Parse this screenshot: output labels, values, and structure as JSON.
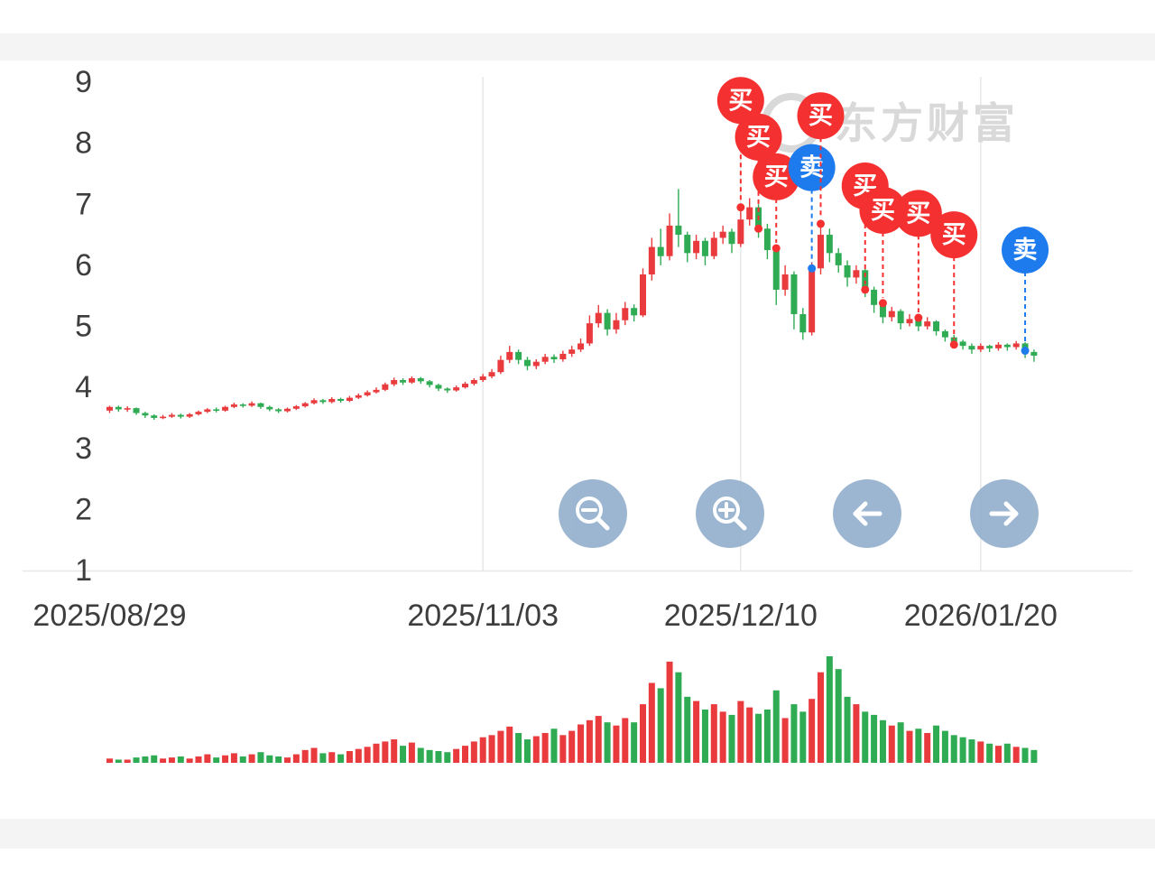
{
  "watermark": {
    "text": "东方财富"
  },
  "marker_labels": {
    "buy": "买",
    "sell": "卖"
  },
  "colors": {
    "up": "#e93b3d",
    "down": "#2fab54",
    "buy_marker": "#f53030",
    "sell_marker": "#1d7bee",
    "grid": "#e8e8e8",
    "axis_text": "#3d3d3d",
    "button_bg": "#8fadcb",
    "watermark": "#d9d9d9"
  },
  "toolbar": {
    "buttons": [
      {
        "id": "zoom-out",
        "icon": "magnifier-minus-icon"
      },
      {
        "id": "zoom-in",
        "icon": "magnifier-plus-icon"
      },
      {
        "id": "pan-left",
        "icon": "arrow-left-icon"
      },
      {
        "id": "pan-right",
        "icon": "arrow-right-icon"
      }
    ]
  },
  "chart_data": {
    "type": "candlestick",
    "title": "",
    "y_ticks": [
      1,
      2,
      3,
      4,
      5,
      6,
      7,
      8,
      9
    ],
    "ylim": [
      1,
      9
    ],
    "grid": "light",
    "x_ticks": [
      {
        "index": 0,
        "label": "2025/08/29"
      },
      {
        "index": 42,
        "label": "2025/11/03"
      },
      {
        "index": 71,
        "label": "2025/12/10"
      },
      {
        "index": 98,
        "label": "2026/01/20"
      }
    ],
    "candle_format": "open,close,low,high",
    "candles": [
      [
        3.62,
        3.68,
        3.58,
        3.7
      ],
      [
        3.68,
        3.64,
        3.6,
        3.7
      ],
      [
        3.64,
        3.66,
        3.6,
        3.69
      ],
      [
        3.66,
        3.58,
        3.55,
        3.67
      ],
      [
        3.58,
        3.54,
        3.5,
        3.6
      ],
      [
        3.54,
        3.5,
        3.47,
        3.56
      ],
      [
        3.5,
        3.52,
        3.48,
        3.55
      ],
      [
        3.52,
        3.55,
        3.5,
        3.58
      ],
      [
        3.55,
        3.52,
        3.49,
        3.57
      ],
      [
        3.52,
        3.56,
        3.5,
        3.58
      ],
      [
        3.56,
        3.6,
        3.54,
        3.62
      ],
      [
        3.6,
        3.64,
        3.58,
        3.66
      ],
      [
        3.64,
        3.62,
        3.59,
        3.67
      ],
      [
        3.62,
        3.68,
        3.6,
        3.7
      ],
      [
        3.68,
        3.72,
        3.66,
        3.75
      ],
      [
        3.72,
        3.7,
        3.67,
        3.74
      ],
      [
        3.7,
        3.74,
        3.68,
        3.77
      ],
      [
        3.74,
        3.68,
        3.65,
        3.75
      ],
      [
        3.68,
        3.64,
        3.61,
        3.7
      ],
      [
        3.64,
        3.61,
        3.58,
        3.66
      ],
      [
        3.61,
        3.65,
        3.59,
        3.67
      ],
      [
        3.65,
        3.69,
        3.63,
        3.71
      ],
      [
        3.69,
        3.74,
        3.67,
        3.76
      ],
      [
        3.74,
        3.79,
        3.72,
        3.82
      ],
      [
        3.79,
        3.76,
        3.73,
        3.81
      ],
      [
        3.76,
        3.81,
        3.74,
        3.84
      ],
      [
        3.81,
        3.78,
        3.75,
        3.83
      ],
      [
        3.78,
        3.83,
        3.76,
        3.86
      ],
      [
        3.83,
        3.87,
        3.81,
        3.9
      ],
      [
        3.87,
        3.92,
        3.85,
        3.95
      ],
      [
        3.92,
        3.96,
        3.9,
        4.0
      ],
      [
        3.96,
        4.05,
        3.94,
        4.08
      ],
      [
        4.05,
        4.12,
        4.02,
        4.16
      ],
      [
        4.12,
        4.08,
        4.04,
        4.15
      ],
      [
        4.08,
        4.15,
        4.06,
        4.18
      ],
      [
        4.15,
        4.1,
        4.06,
        4.17
      ],
      [
        4.1,
        4.04,
        4.0,
        4.12
      ],
      [
        4.04,
        3.98,
        3.94,
        4.06
      ],
      [
        3.98,
        3.95,
        3.91,
        4.0
      ],
      [
        3.95,
        4.0,
        3.93,
        4.03
      ],
      [
        4.0,
        4.06,
        3.98,
        4.09
      ],
      [
        4.06,
        4.12,
        4.03,
        4.15
      ],
      [
        4.12,
        4.18,
        4.09,
        4.22
      ],
      [
        4.18,
        4.25,
        4.15,
        4.3
      ],
      [
        4.25,
        4.45,
        4.22,
        4.52
      ],
      [
        4.45,
        4.58,
        4.4,
        4.68
      ],
      [
        4.58,
        4.45,
        4.38,
        4.62
      ],
      [
        4.45,
        4.35,
        4.28,
        4.5
      ],
      [
        4.35,
        4.42,
        4.3,
        4.46
      ],
      [
        4.42,
        4.5,
        4.38,
        4.55
      ],
      [
        4.5,
        4.46,
        4.4,
        4.54
      ],
      [
        4.46,
        4.55,
        4.42,
        4.6
      ],
      [
        4.55,
        4.62,
        4.5,
        4.68
      ],
      [
        4.62,
        4.72,
        4.58,
        4.8
      ],
      [
        4.72,
        5.05,
        4.68,
        5.18
      ],
      [
        5.05,
        5.22,
        4.98,
        5.35
      ],
      [
        5.22,
        4.95,
        4.85,
        5.28
      ],
      [
        4.95,
        5.1,
        4.88,
        5.22
      ],
      [
        5.1,
        5.3,
        5.02,
        5.4
      ],
      [
        5.3,
        5.18,
        5.08,
        5.36
      ],
      [
        5.18,
        5.85,
        5.15,
        5.95
      ],
      [
        5.85,
        6.3,
        5.75,
        6.45
      ],
      [
        6.3,
        6.15,
        6.0,
        6.6
      ],
      [
        6.15,
        6.65,
        6.08,
        6.85
      ],
      [
        6.65,
        6.5,
        6.3,
        7.25
      ],
      [
        6.5,
        6.2,
        6.05,
        6.55
      ],
      [
        6.2,
        6.4,
        6.1,
        6.5
      ],
      [
        6.4,
        6.15,
        6.0,
        6.45
      ],
      [
        6.15,
        6.45,
        6.1,
        6.55
      ],
      [
        6.45,
        6.55,
        6.35,
        6.65
      ],
      [
        6.55,
        6.35,
        6.2,
        6.6
      ],
      [
        6.35,
        6.75,
        6.3,
        6.9
      ],
      [
        6.75,
        6.95,
        6.65,
        7.1
      ],
      [
        6.95,
        6.6,
        6.45,
        7.0
      ],
      [
        6.6,
        6.25,
        6.1,
        6.68
      ],
      [
        6.25,
        5.6,
        5.35,
        6.3
      ],
      [
        5.6,
        5.85,
        5.5,
        6.0
      ],
      [
        5.85,
        5.2,
        4.95,
        5.9
      ],
      [
        5.2,
        4.9,
        4.78,
        5.3
      ],
      [
        4.9,
        5.95,
        4.85,
        6.05
      ],
      [
        5.95,
        6.5,
        5.85,
        6.65
      ],
      [
        6.5,
        6.2,
        6.05,
        6.6
      ],
      [
        6.2,
        6.0,
        5.88,
        6.28
      ],
      [
        6.0,
        5.8,
        5.65,
        6.08
      ],
      [
        5.8,
        5.92,
        5.7,
        6.0
      ],
      [
        5.92,
        5.6,
        5.48,
        5.95
      ],
      [
        5.6,
        5.35,
        5.22,
        5.65
      ],
      [
        5.35,
        5.15,
        5.05,
        5.4
      ],
      [
        5.15,
        5.25,
        5.08,
        5.32
      ],
      [
        5.25,
        5.05,
        4.95,
        5.28
      ],
      [
        5.05,
        5.12,
        5.0,
        5.2
      ],
      [
        5.12,
        5.0,
        4.92,
        5.16
      ],
      [
        5.0,
        5.08,
        4.95,
        5.15
      ],
      [
        5.08,
        4.92,
        4.85,
        5.1
      ],
      [
        4.92,
        4.82,
        4.75,
        4.95
      ],
      [
        4.82,
        4.75,
        4.68,
        4.86
      ],
      [
        4.75,
        4.68,
        4.62,
        4.78
      ],
      [
        4.68,
        4.62,
        4.55,
        4.72
      ],
      [
        4.62,
        4.68,
        4.58,
        4.72
      ],
      [
        4.68,
        4.64,
        4.58,
        4.7
      ],
      [
        4.64,
        4.7,
        4.6,
        4.74
      ],
      [
        4.7,
        4.66,
        4.6,
        4.72
      ],
      [
        4.66,
        4.72,
        4.62,
        4.76
      ],
      [
        4.72,
        4.58,
        4.48,
        4.74
      ],
      [
        4.58,
        4.52,
        4.42,
        4.62
      ]
    ],
    "volume_ylim": [
      0,
      100
    ],
    "volumes": [
      4,
      3,
      3,
      5,
      6,
      7,
      4,
      5,
      6,
      4,
      6,
      8,
      5,
      7,
      9,
      6,
      8,
      10,
      7,
      6,
      5,
      8,
      12,
      14,
      9,
      10,
      8,
      11,
      13,
      15,
      18,
      20,
      22,
      16,
      19,
      14,
      12,
      11,
      10,
      13,
      16,
      20,
      24,
      26,
      30,
      34,
      28,
      22,
      25,
      28,
      32,
      26,
      30,
      36,
      40,
      44,
      38,
      35,
      42,
      38,
      55,
      75,
      70,
      95,
      85,
      62,
      58,
      50,
      55,
      48,
      45,
      58,
      52,
      46,
      50,
      68,
      42,
      55,
      48,
      60,
      85,
      100,
      88,
      62,
      55,
      48,
      45,
      40,
      35,
      38,
      30,
      32,
      28,
      35,
      30,
      26,
      24,
      22,
      20,
      18,
      16,
      18,
      15,
      14,
      12
    ],
    "markers": [
      {
        "index": 71,
        "type": "buy",
        "price": 6.95,
        "label_price": 8.7
      },
      {
        "index": 73,
        "type": "buy",
        "price": 6.6,
        "label_price": 8.1
      },
      {
        "index": 75,
        "type": "buy",
        "price": 6.28,
        "label_price": 7.45
      },
      {
        "index": 79,
        "type": "sell",
        "price": 5.95,
        "label_price": 7.6
      },
      {
        "index": 80,
        "type": "buy",
        "price": 6.68,
        "label_price": 8.45
      },
      {
        "index": 85,
        "type": "buy",
        "price": 5.6,
        "label_price": 7.3
      },
      {
        "index": 87,
        "type": "buy",
        "price": 5.38,
        "label_price": 6.9
      },
      {
        "index": 91,
        "type": "buy",
        "price": 5.14,
        "label_price": 6.85
      },
      {
        "index": 95,
        "type": "buy",
        "price": 4.7,
        "label_price": 6.5
      },
      {
        "index": 103,
        "type": "sell",
        "price": 4.6,
        "label_price": 6.25
      }
    ]
  }
}
